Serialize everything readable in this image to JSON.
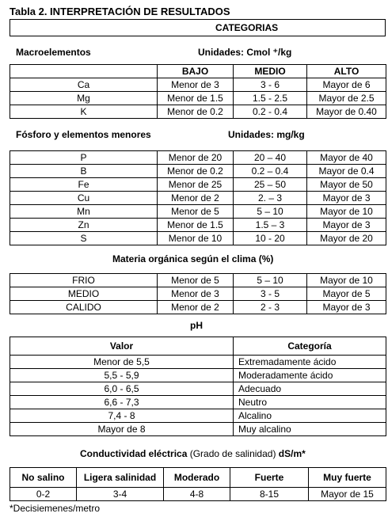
{
  "title": "Tabla 2.   INTERPRETACIÓN DE RESULTADOS",
  "categorias": "CATEGORIAS",
  "macro": {
    "section_label": "Macroelementos",
    "units": "Unidades: Cmol ⁺/kg",
    "headers": [
      "",
      "BAJO",
      "MEDIO",
      "ALTO"
    ],
    "rows": [
      [
        "Ca",
        "Menor de 3",
        "3 - 6",
        "Mayor de 6"
      ],
      [
        "Mg",
        "Menor de 1.5",
        "1.5 - 2.5",
        "Mayor de 2.5"
      ],
      [
        "K",
        "Menor de 0.2",
        "0.2 - 0.4",
        "Mayor de 0.40"
      ]
    ]
  },
  "fosforo": {
    "section_label": "Fósforo y elementos menores",
    "units": "Unidades: mg/kg",
    "rows": [
      [
        "P",
        "Menor de 20",
        "20 – 40",
        "Mayor de 40"
      ],
      [
        "B",
        "Menor de 0.2",
        "0.2 – 0.4",
        "Mayor de 0.4"
      ],
      [
        "Fe",
        "Menor de 25",
        "25 – 50",
        "Mayor de 50"
      ],
      [
        "Cu",
        "Menor de 2",
        "2. – 3",
        "Mayor de 3"
      ],
      [
        "Mn",
        "Menor de 5",
        "5 – 10",
        "Mayor de 10"
      ],
      [
        "Zn",
        "Menor de 1.5",
        "1.5 – 3",
        "Mayor de 3"
      ],
      [
        "S",
        "Menor de 10",
        "10 - 20",
        "Mayor de 20"
      ]
    ]
  },
  "materia": {
    "section_label": "Materia orgánica según el clima (%)",
    "rows": [
      [
        "FRIO",
        "Menor de 5",
        "5 – 10",
        "Mayor de 10"
      ],
      [
        "MEDIO",
        "Menor de 3",
        "3  - 5",
        "Mayor de 5"
      ],
      [
        "CALIDO",
        "Menor de 2",
        "2 - 3",
        "Mayor de 3"
      ]
    ]
  },
  "ph": {
    "section_label": "pH",
    "headers": [
      "Valor",
      "Categoría"
    ],
    "rows": [
      [
        "Menor de 5,5",
        "Extremadamente ácido"
      ],
      [
        "5,5 - 5,9",
        "Moderadamente ácido"
      ],
      [
        "6,0 - 6,5",
        "Adecuado"
      ],
      [
        "6,6  - 7,3",
        "Neutro"
      ],
      [
        "7,4 - 8",
        "Alcalino"
      ],
      [
        "Mayor de 8",
        "Muy alcalino"
      ]
    ]
  },
  "conductividad": {
    "label_bold_1": "Conductividad eléctrica",
    "label_normal": " (Grado de salinidad) ",
    "label_bold_2": "dS/m*",
    "headers": [
      "No salino",
      "Ligera salinidad",
      "Moderado",
      "Fuerte",
      "Muy fuerte"
    ],
    "values": [
      "0-2",
      "3-4",
      "4-8",
      "8-15",
      "Mayor de 15"
    ]
  },
  "footnote": "*Decisiemenes/metro"
}
